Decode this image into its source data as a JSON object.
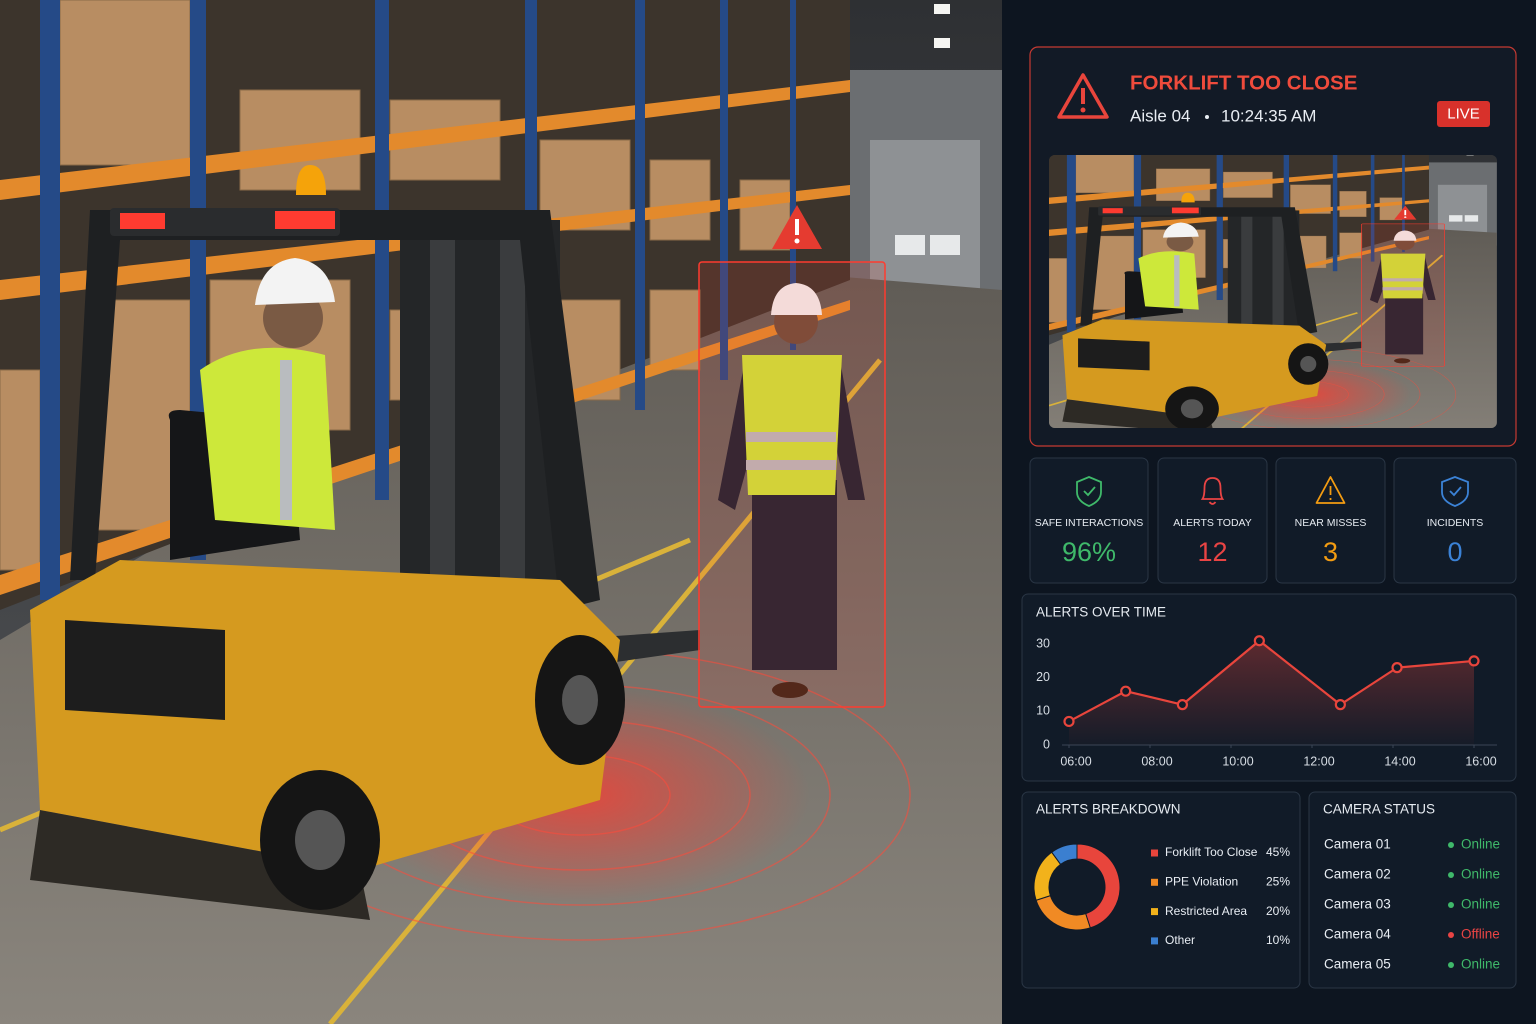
{
  "alert": {
    "title": "FORKLIFT TOO CLOSE",
    "location": "Aisle 04",
    "time": "10:24:35 AM",
    "badge": "LIVE"
  },
  "stats": [
    {
      "label": "SAFE INTERACTIONS",
      "value": "96%",
      "color": "#3fb96a"
    },
    {
      "label": "ALERTS TODAY",
      "value": "12",
      "color": "#e94444"
    },
    {
      "label": "NEAR MISSES",
      "value": "3",
      "color": "#f39c12"
    },
    {
      "label": "INCIDENTS",
      "value": "0",
      "color": "#3b82d6"
    }
  ],
  "chart_data": [
    {
      "type": "line",
      "title": "ALERTS OVER TIME",
      "x": [
        6,
        7.4,
        8.8,
        10.7,
        12.7,
        14.1,
        16
      ],
      "values": [
        7,
        16,
        12,
        31,
        12,
        23,
        25
      ],
      "color": "#e8453c",
      "xlim": [
        6,
        16
      ],
      "xticks": [
        {
          "value": 6,
          "label": "06:00"
        },
        {
          "value": 8,
          "label": "08:00"
        },
        {
          "value": 10,
          "label": "10:00"
        },
        {
          "value": 12,
          "label": "12:00"
        },
        {
          "value": 14,
          "label": "14:00"
        },
        {
          "value": 16,
          "label": "16:00"
        }
      ],
      "ylim": [
        0,
        33
      ],
      "yticks": [
        0,
        10,
        20,
        30
      ]
    },
    {
      "type": "pie",
      "title": "ALERTS BREAKDOWN",
      "categories": [
        "Forklift Too Close",
        "PPE Violation",
        "Restricted Area",
        "Other"
      ],
      "values": [
        45,
        25,
        20,
        10
      ],
      "value_labels": [
        "45%",
        "25%",
        "20%",
        "10%"
      ],
      "colors": [
        "#e8453c",
        "#f08a24",
        "#f2b21b",
        "#3b7fd0"
      ]
    }
  ],
  "camera_status": {
    "title": "CAMERA STATUS",
    "cameras": [
      {
        "name": "Camera 01",
        "status": "Online",
        "color": "#3fb96a"
      },
      {
        "name": "Camera 02",
        "status": "Online",
        "color": "#3fb96a"
      },
      {
        "name": "Camera 03",
        "status": "Online",
        "color": "#3fb96a"
      },
      {
        "name": "Camera 04",
        "status": "Offline",
        "color": "#e94444"
      },
      {
        "name": "Camera 05",
        "status": "Online",
        "color": "#3fb96a"
      }
    ]
  }
}
